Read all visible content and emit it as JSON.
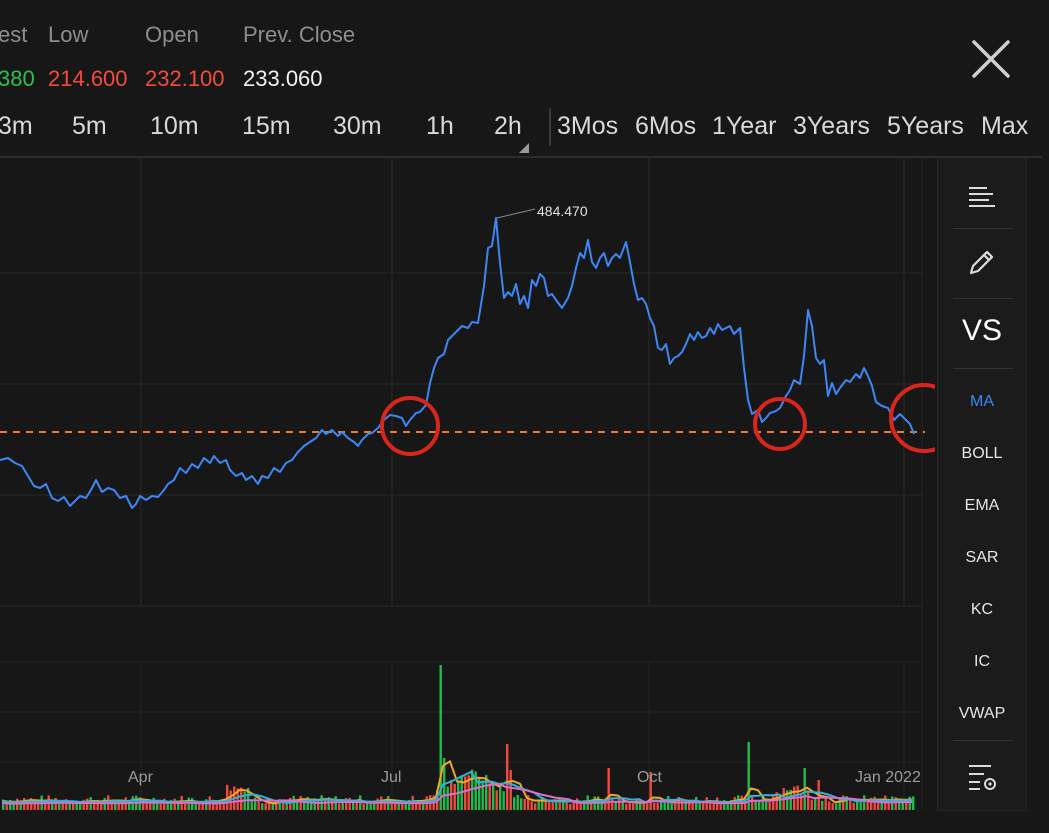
{
  "stats": [
    {
      "label": "est",
      "value": "380",
      "color": "#2fbf4f"
    },
    {
      "label": "Low",
      "value": "214.600",
      "color": "#f24c3d"
    },
    {
      "label": "Open",
      "value": "232.100",
      "color": "#f24c3d"
    },
    {
      "label": "Prev. Close",
      "value": "233.060",
      "color": "#f2f2f2"
    }
  ],
  "timeframes": [
    "3m",
    "5m",
    "10m",
    "15m",
    "30m",
    "1h",
    "2h",
    "3Mos",
    "6Mos",
    "1Year",
    "3Years",
    "5Years",
    "Max"
  ],
  "chart": {
    "x_labels": [
      "Apr",
      "Jul",
      "Oct",
      "Jan 2022"
    ],
    "peak_label": "484.470",
    "line_color": "#3d86f4",
    "ref_line_color": "#f07a2a",
    "annotation_color": "#d9261c"
  },
  "sidebar": {
    "vs_label": "VS",
    "indicators": [
      "MA",
      "BOLL",
      "EMA",
      "SAR",
      "KC",
      "IC",
      "VWAP"
    ],
    "active_indicator": "MA",
    "icons": [
      "list-icon",
      "pencil-icon",
      "indicator-settings-icon"
    ]
  },
  "icons": {
    "close": "close-icon"
  }
}
